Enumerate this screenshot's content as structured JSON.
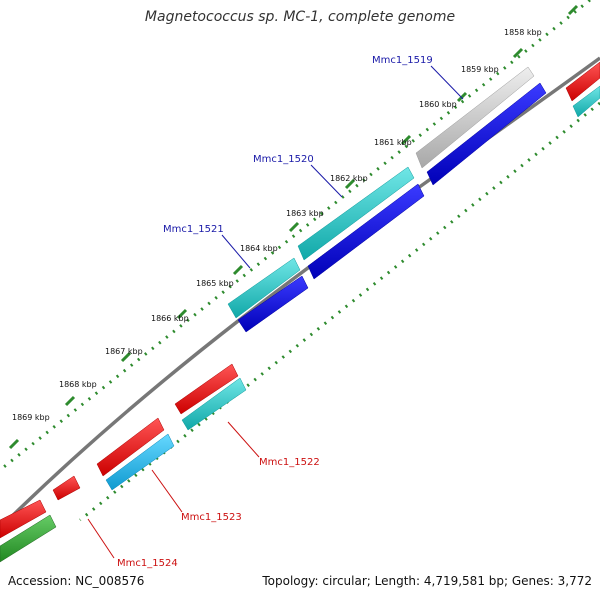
{
  "title": "Magnetococcus sp. MC-1, complete genome",
  "footer": {
    "accession": "Accession: NC_008576",
    "summary": "Topology: circular; Length: 4,719,581 bp; Genes: 3,772"
  },
  "ticks": [
    "1858 kbp",
    "1859 kbp",
    "1860 kbp",
    "1861 kbp",
    "1862 kbp",
    "1863 kbp",
    "1864 kbp",
    "1865 kbp",
    "1866 kbp",
    "1867 kbp",
    "1868 kbp",
    "1869 kbp"
  ],
  "genes": [
    {
      "label": "Mmc1_1519",
      "color": "#1a1aa8"
    },
    {
      "label": "Mmc1_1520",
      "color": "#1a1aa8"
    },
    {
      "label": "Mmc1_1521",
      "color": "#1a1aa8"
    },
    {
      "label": "Mmc1_1522",
      "color": "#cc1111"
    },
    {
      "label": "Mmc1_1523",
      "color": "#cc1111"
    },
    {
      "label": "Mmc1_1524",
      "color": "#cc1111"
    }
  ],
  "colors": {
    "backbone": "#777777",
    "tick_dots": "#2e8b2e",
    "forward_blue": "#0000dd",
    "forward_teal": "#20c6c6",
    "forward_gray": "#c8c8c8",
    "reverse_red": "#ee1111",
    "reverse_cyan": "#22bbee",
    "reverse_green": "#33aa33"
  }
}
